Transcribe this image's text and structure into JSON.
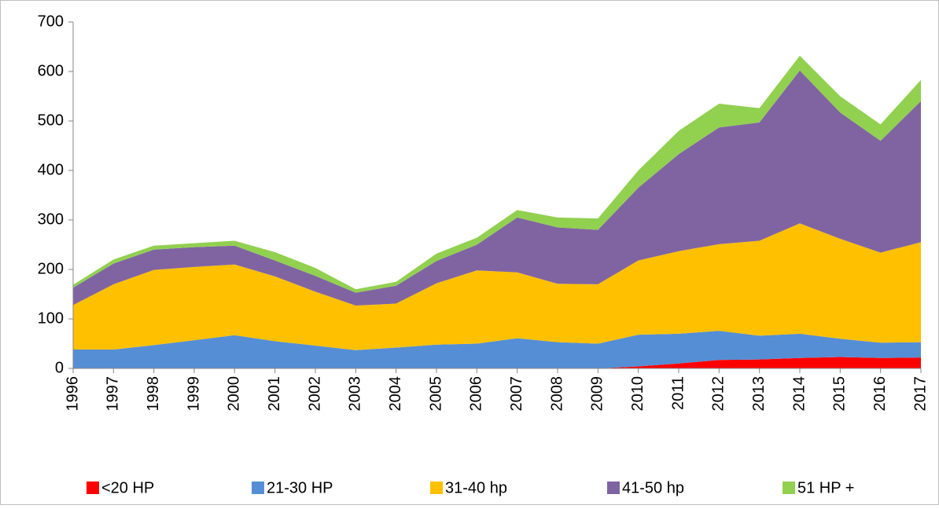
{
  "chart_data": {
    "type": "area",
    "stacked": true,
    "categories": [
      "1996",
      "1997",
      "1998",
      "1999",
      "2000",
      "2001",
      "2002",
      "2003",
      "2004",
      "2005",
      "2006",
      "2007",
      "2008",
      "2009",
      "2010",
      "2011",
      "2012",
      "2013",
      "2014",
      "2015",
      "2016",
      "2017"
    ],
    "series": [
      {
        "name": "<20 HP",
        "color": "#ff0000",
        "values": [
          0,
          0,
          0,
          0,
          0,
          0,
          0,
          0,
          0,
          0,
          0,
          0,
          0,
          0,
          4,
          10,
          17,
          18,
          21,
          23,
          21,
          22
        ]
      },
      {
        "name": "21-30 HP",
        "color": "#558ed5",
        "values": [
          38,
          38,
          47,
          57,
          67,
          55,
          46,
          37,
          42,
          48,
          50,
          61,
          53,
          50,
          64,
          60,
          59,
          48,
          49,
          37,
          31,
          31
        ]
      },
      {
        "name": "31-40 hp",
        "color": "#ffc000",
        "values": [
          90,
          132,
          152,
          148,
          143,
          131,
          109,
          90,
          89,
          124,
          148,
          133,
          118,
          120,
          150,
          167,
          175,
          192,
          223,
          202,
          182,
          202
        ]
      },
      {
        "name": "41-50 hp",
        "color": "#8064a2",
        "values": [
          35,
          42,
          41,
          40,
          38,
          32,
          32,
          26,
          36,
          45,
          52,
          111,
          114,
          110,
          147,
          196,
          236,
          239,
          309,
          255,
          226,
          285
        ]
      },
      {
        "name": "51 HP +",
        "color": "#92d050",
        "values": [
          6,
          8,
          8,
          8,
          10,
          17,
          16,
          7,
          8,
          15,
          14,
          15,
          20,
          23,
          35,
          47,
          48,
          29,
          30,
          33,
          33,
          43
        ]
      }
    ],
    "ylim": [
      0,
      700
    ],
    "yticks": [
      0,
      100,
      200,
      300,
      400,
      500,
      600,
      700
    ],
    "grid": false,
    "legend": "bottom"
  }
}
